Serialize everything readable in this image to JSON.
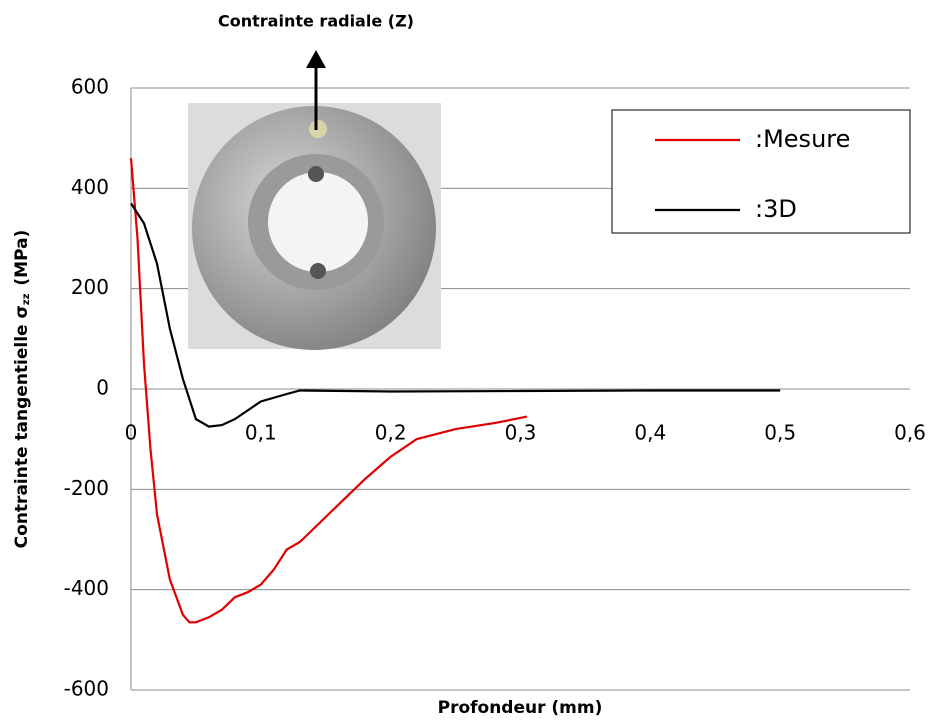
{
  "chart_data": {
    "type": "line",
    "annotation": "Contrainte radiale (Z)",
    "x_label": "Profondeur (mm)",
    "y_label": {
      "main": "Contrainte tangentielle σ",
      "sub": "zz",
      "unit": "(MPa)"
    },
    "xlim": [
      0,
      0.6
    ],
    "xticks": [
      {
        "value": 0,
        "label": "0"
      },
      {
        "value": 0.1,
        "label": "0,1"
      },
      {
        "value": 0.2,
        "label": "0,2"
      },
      {
        "value": 0.3,
        "label": "0,3"
      },
      {
        "value": 0.4,
        "label": "0,4"
      },
      {
        "value": 0.5,
        "label": "0,5"
      },
      {
        "value": 0.6,
        "label": "0,6"
      }
    ],
    "ylim": [
      -600,
      600
    ],
    "yticks": [
      -600,
      -400,
      -200,
      0,
      200,
      400,
      600
    ],
    "grid": true,
    "legend": "upper right",
    "series": [
      {
        "name": ":Mesure",
        "color": "#e00000",
        "x": [
          0,
          0.005,
          0.01,
          0.015,
          0.02,
          0.03,
          0.04,
          0.045,
          0.05,
          0.06,
          0.07,
          0.08,
          0.09,
          0.1,
          0.11,
          0.12,
          0.13,
          0.14,
          0.16,
          0.18,
          0.2,
          0.22,
          0.25,
          0.28,
          0.305
        ],
        "values": [
          460,
          300,
          50,
          -120,
          -250,
          -380,
          -450,
          -465,
          -465,
          -455,
          -440,
          -415,
          -405,
          -390,
          -360,
          -320,
          -305,
          -280,
          -230,
          -180,
          -135,
          -100,
          -80,
          -68,
          -55
        ]
      },
      {
        "name": ":3D",
        "color": "#000000",
        "x": [
          0,
          0.01,
          0.02,
          0.03,
          0.04,
          0.05,
          0.06,
          0.07,
          0.08,
          0.1,
          0.12,
          0.13,
          0.2,
          0.3,
          0.4,
          0.5
        ],
        "values": [
          370,
          330,
          250,
          120,
          20,
          -60,
          -75,
          -72,
          -60,
          -25,
          -10,
          -3,
          -5,
          -4,
          -3,
          -3
        ]
      }
    ]
  }
}
